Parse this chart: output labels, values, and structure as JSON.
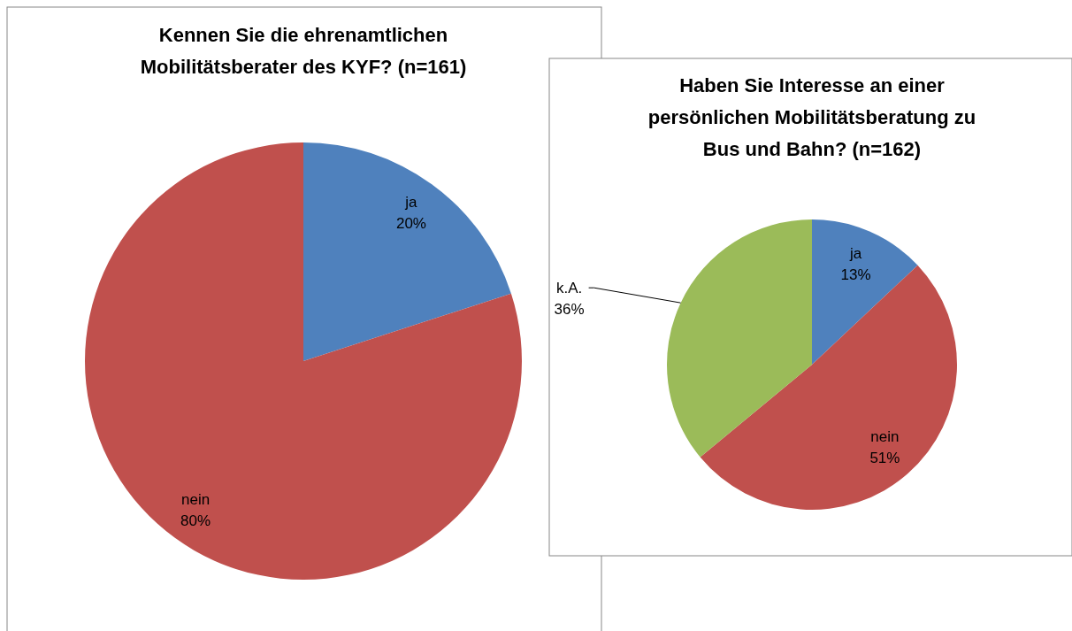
{
  "chart_data": [
    {
      "type": "pie",
      "title": "Kennen Sie die ehrenamtlichen Mobilitätsberater des KYF? (n=161)",
      "categories": [
        "ja",
        "nein"
      ],
      "values": [
        20,
        80
      ],
      "colors": [
        "#4f81bd",
        "#c0504d"
      ],
      "value_labels": [
        "20%",
        "80%"
      ]
    },
    {
      "type": "pie",
      "title": "Haben Sie Interesse an einer persönlichen Mobilitätsberatung zu Bus und Bahn? (n=162)",
      "categories": [
        "ja",
        "nein",
        "k.A."
      ],
      "values": [
        13,
        51,
        36
      ],
      "colors": [
        "#4f81bd",
        "#c0504d",
        "#9bbb59"
      ],
      "value_labels": [
        "13%",
        "51%",
        "36%"
      ]
    }
  ]
}
